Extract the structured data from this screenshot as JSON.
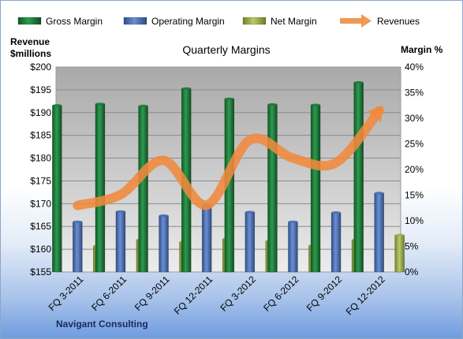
{
  "chart_data": {
    "type": "bar",
    "title": "Quarterly Margins",
    "left_axis_label": [
      "Revenue",
      "$millions"
    ],
    "right_axis_label": "Margin %",
    "footer": "Navigant Consulting",
    "categories": [
      "FQ 3-2011",
      "FQ 6-2011",
      "FQ 9-2011",
      "FQ 12-2011",
      "FQ 3-2012",
      "FQ 6-2012",
      "FQ 9-2012",
      "FQ 12-2012"
    ],
    "left_ticks": [
      "$155",
      "$160",
      "$165",
      "$170",
      "$175",
      "$180",
      "$185",
      "$190",
      "$195",
      "$200"
    ],
    "right_ticks": [
      "0%",
      "5%",
      "10%",
      "15%",
      "20%",
      "25%",
      "30%",
      "35%",
      "40%"
    ],
    "ylim_left": [
      155,
      200
    ],
    "ylim_right": [
      0,
      40
    ],
    "grid": true,
    "legend_position": "top",
    "series": [
      {
        "name": "Gross Margin",
        "type": "bar",
        "axis": "right",
        "color": "#1d7a3a",
        "values": [
          32.5,
          32.8,
          32.4,
          35.8,
          33.8,
          32.7,
          32.6,
          37.0
        ]
      },
      {
        "name": "Operating Margin",
        "type": "bar",
        "axis": "right",
        "color": "#4a6fb5",
        "values": [
          9.8,
          11.8,
          11.0,
          13.0,
          11.7,
          9.8,
          11.6,
          15.4
        ]
      },
      {
        "name": "Net Margin",
        "type": "bar",
        "axis": "right",
        "color": "#9bb04a",
        "values": [
          5.1,
          6.3,
          5.9,
          6.5,
          6.1,
          5.2,
          6.3,
          7.2
        ]
      },
      {
        "name": "Revenues",
        "type": "line",
        "axis": "left",
        "color": "#f08a3c",
        "values": [
          169.6,
          172.0,
          179.5,
          169.7,
          184.0,
          180.0,
          179.0,
          190.4
        ]
      }
    ]
  }
}
